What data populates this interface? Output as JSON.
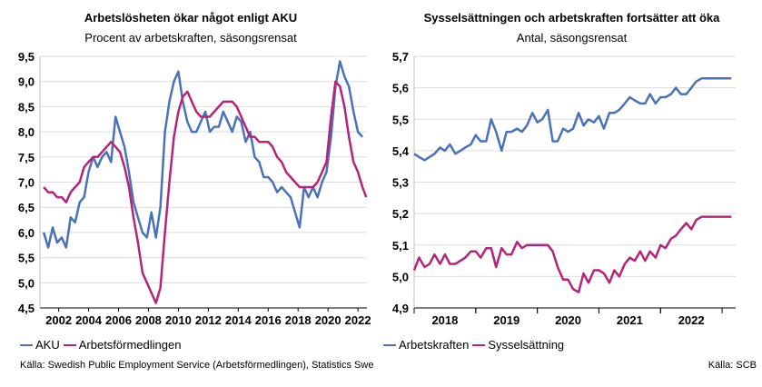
{
  "colors": {
    "blue": "#4a72b8",
    "magenta": "#b5247a",
    "axis": "#000000",
    "grid": "#dcdcdc"
  },
  "left": {
    "title": "Arbetslösheten ökar något enligt AKU",
    "subtitle": "Procent av arbetskraften, säsongsrensat",
    "legend": [
      "AKU",
      "Arbetsförmedlingen"
    ],
    "source": "Källa: Swedish Public Employment Service (Arbetsförmedlingen), Statistics Swe"
  },
  "right": {
    "title": "Sysselsättningen och arbetskraften fortsätter att öka",
    "subtitle": "Antal, säsongsrensat",
    "legend": [
      "Arbetskraften",
      "Sysselsättning"
    ],
    "source": "Källa: SCB"
  },
  "chart_data": [
    {
      "type": "line",
      "title": "Arbetslösheten ökar något enligt AKU",
      "subtitle": "Procent av arbetskraften, säsongsrensat",
      "ylim": [
        4.5,
        9.5
      ],
      "xlim": [
        2000.75,
        2022.6
      ],
      "y_ticks": [
        "4,5",
        "5,0",
        "5,5",
        "6,0",
        "6,5",
        "7,0",
        "7,5",
        "8,0",
        "8,5",
        "9,0",
        "9,5"
      ],
      "x_ticks": [
        "2002",
        "2004",
        "2006",
        "2008",
        "2010",
        "2012",
        "2014",
        "2016",
        "2018",
        "2020",
        "2022"
      ],
      "grid": true,
      "legend": "bottom-left",
      "series": [
        {
          "name": "AKU",
          "color": "#4a72b8",
          "x": [
            2001.0,
            2001.3,
            2001.6,
            2001.9,
            2002.2,
            2002.5,
            2002.8,
            2003.1,
            2003.4,
            2003.7,
            2004.0,
            2004.3,
            2004.6,
            2004.9,
            2005.2,
            2005.5,
            2005.8,
            2006.1,
            2006.4,
            2006.7,
            2007.0,
            2007.3,
            2007.6,
            2007.9,
            2008.2,
            2008.5,
            2008.8,
            2009.1,
            2009.4,
            2009.7,
            2010.0,
            2010.3,
            2010.6,
            2010.9,
            2011.2,
            2011.5,
            2011.8,
            2012.1,
            2012.4,
            2012.7,
            2013.0,
            2013.3,
            2013.6,
            2013.9,
            2014.2,
            2014.5,
            2014.8,
            2015.1,
            2015.4,
            2015.7,
            2016.0,
            2016.3,
            2016.6,
            2016.9,
            2017.2,
            2017.5,
            2017.8,
            2018.1,
            2018.4,
            2018.7,
            2019.0,
            2019.3,
            2019.6,
            2019.9,
            2020.2,
            2020.5,
            2020.8,
            2021.1,
            2021.4,
            2021.7,
            2022.0,
            2022.3
          ],
          "y": [
            6.0,
            5.7,
            6.1,
            5.8,
            5.9,
            5.7,
            6.3,
            6.2,
            6.6,
            6.7,
            7.2,
            7.5,
            7.3,
            7.5,
            7.6,
            7.4,
            8.3,
            8.0,
            7.7,
            7.2,
            6.6,
            6.3,
            6.0,
            5.9,
            6.4,
            5.9,
            6.5,
            8.0,
            8.6,
            9.0,
            9.2,
            8.6,
            8.2,
            8.0,
            8.0,
            8.2,
            8.4,
            8.0,
            8.1,
            8.1,
            8.4,
            8.2,
            8.0,
            8.3,
            8.2,
            7.8,
            8.0,
            7.5,
            7.4,
            7.1,
            7.1,
            7.0,
            6.8,
            6.9,
            6.8,
            6.7,
            6.4,
            6.1,
            6.9,
            6.7,
            6.9,
            6.7,
            7.0,
            7.2,
            7.9,
            8.9,
            9.4,
            9.1,
            8.9,
            8.4,
            8.0,
            7.9
          ]
        },
        {
          "name": "Arbetsförmedlingen",
          "color": "#b5247a",
          "x": [
            2001.0,
            2001.3,
            2001.6,
            2001.9,
            2002.2,
            2002.5,
            2002.8,
            2003.1,
            2003.4,
            2003.7,
            2004.0,
            2004.3,
            2004.6,
            2004.9,
            2005.2,
            2005.5,
            2005.8,
            2006.1,
            2006.4,
            2006.7,
            2007.0,
            2007.3,
            2007.6,
            2007.9,
            2008.2,
            2008.5,
            2008.8,
            2009.1,
            2009.4,
            2009.7,
            2010.0,
            2010.3,
            2010.6,
            2010.9,
            2011.2,
            2011.5,
            2011.8,
            2012.1,
            2012.4,
            2012.7,
            2013.0,
            2013.3,
            2013.6,
            2013.9,
            2014.2,
            2014.5,
            2014.8,
            2015.1,
            2015.4,
            2015.7,
            2016.0,
            2016.3,
            2016.6,
            2016.9,
            2017.2,
            2017.5,
            2017.8,
            2018.1,
            2018.4,
            2018.7,
            2019.0,
            2019.3,
            2019.6,
            2019.9,
            2020.2,
            2020.5,
            2020.8,
            2021.1,
            2021.4,
            2021.7,
            2022.0,
            2022.3,
            2022.55
          ],
          "y": [
            6.9,
            6.8,
            6.8,
            6.7,
            6.7,
            6.6,
            6.8,
            6.9,
            7.0,
            7.3,
            7.4,
            7.5,
            7.5,
            7.6,
            7.7,
            7.8,
            7.7,
            7.6,
            7.3,
            6.9,
            6.3,
            5.8,
            5.2,
            5.0,
            4.8,
            4.6,
            4.9,
            6.0,
            7.0,
            7.9,
            8.4,
            8.7,
            8.8,
            8.6,
            8.4,
            8.3,
            8.3,
            8.3,
            8.4,
            8.5,
            8.6,
            8.6,
            8.6,
            8.5,
            8.3,
            8.1,
            7.9,
            7.9,
            7.8,
            7.8,
            7.8,
            7.7,
            7.5,
            7.4,
            7.2,
            7.1,
            7.0,
            6.9,
            6.9,
            6.9,
            6.9,
            7.0,
            7.2,
            7.4,
            8.3,
            9.0,
            8.9,
            8.5,
            7.9,
            7.4,
            7.2,
            6.9,
            6.7
          ]
        }
      ]
    },
    {
      "type": "line",
      "title": "Sysselsättningen och arbetskraften fortsätter att öka",
      "subtitle": "Antal, säsongsrensat",
      "ylim": [
        4.9,
        5.7
      ],
      "xlim": [
        2017.5,
        2022.72
      ],
      "y_ticks": [
        "4,9",
        "5,0",
        "5,1",
        "5,2",
        "5,3",
        "5,4",
        "5,5",
        "5,6",
        "5,7"
      ],
      "x_ticks": [
        "2018",
        "2019",
        "2020",
        "2021",
        "2022"
      ],
      "grid": true,
      "legend": "bottom-left",
      "series": [
        {
          "name": "Arbetskraften",
          "color": "#4a72b8",
          "x": [
            2017.5,
            2017.58,
            2017.67,
            2017.75,
            2017.83,
            2017.92,
            2018.0,
            2018.08,
            2018.17,
            2018.25,
            2018.33,
            2018.42,
            2018.5,
            2018.58,
            2018.67,
            2018.75,
            2018.83,
            2018.92,
            2019.0,
            2019.08,
            2019.17,
            2019.25,
            2019.33,
            2019.42,
            2019.5,
            2019.58,
            2019.67,
            2019.75,
            2019.83,
            2019.92,
            2020.0,
            2020.08,
            2020.17,
            2020.25,
            2020.33,
            2020.42,
            2020.5,
            2020.58,
            2020.67,
            2020.75,
            2020.83,
            2020.92,
            2021.0,
            2021.08,
            2021.17,
            2021.25,
            2021.33,
            2021.42,
            2021.5,
            2021.58,
            2021.67,
            2021.75,
            2021.83,
            2021.92,
            2022.0,
            2022.08,
            2022.17,
            2022.25,
            2022.33,
            2022.42,
            2022.5,
            2022.58,
            2022.65
          ],
          "y": [
            5.39,
            5.38,
            5.37,
            5.38,
            5.39,
            5.41,
            5.4,
            5.42,
            5.39,
            5.4,
            5.41,
            5.42,
            5.45,
            5.43,
            5.43,
            5.5,
            5.46,
            5.4,
            5.46,
            5.46,
            5.47,
            5.46,
            5.48,
            5.52,
            5.49,
            5.5,
            5.53,
            5.43,
            5.43,
            5.47,
            5.46,
            5.47,
            5.52,
            5.48,
            5.5,
            5.49,
            5.51,
            5.47,
            5.52,
            5.52,
            5.53,
            5.55,
            5.57,
            5.56,
            5.55,
            5.55,
            5.58,
            5.55,
            5.57,
            5.57,
            5.58,
            5.6,
            5.58,
            5.58,
            5.6,
            5.62,
            5.63,
            5.63,
            5.63,
            5.63,
            5.63,
            5.63,
            5.63
          ]
        },
        {
          "name": "Sysselsättning",
          "color": "#b5247a",
          "x": [
            2017.5,
            2017.58,
            2017.67,
            2017.75,
            2017.83,
            2017.92,
            2018.0,
            2018.08,
            2018.17,
            2018.25,
            2018.33,
            2018.42,
            2018.5,
            2018.58,
            2018.67,
            2018.75,
            2018.83,
            2018.92,
            2019.0,
            2019.08,
            2019.17,
            2019.25,
            2019.33,
            2019.42,
            2019.5,
            2019.58,
            2019.67,
            2019.75,
            2019.83,
            2019.92,
            2020.0,
            2020.08,
            2020.17,
            2020.25,
            2020.33,
            2020.42,
            2020.5,
            2020.58,
            2020.67,
            2020.75,
            2020.83,
            2020.92,
            2021.0,
            2021.08,
            2021.17,
            2021.25,
            2021.33,
            2021.42,
            2021.5,
            2021.58,
            2021.67,
            2021.75,
            2021.83,
            2021.92,
            2022.0,
            2022.08,
            2022.17,
            2022.25,
            2022.33,
            2022.42,
            2022.5,
            2022.58,
            2022.65
          ],
          "y": [
            5.02,
            5.06,
            5.03,
            5.04,
            5.07,
            5.04,
            5.07,
            5.04,
            5.04,
            5.05,
            5.06,
            5.08,
            5.08,
            5.06,
            5.09,
            5.09,
            5.03,
            5.09,
            5.07,
            5.07,
            5.11,
            5.09,
            5.1,
            5.1,
            5.1,
            5.1,
            5.1,
            5.08,
            5.03,
            4.99,
            4.99,
            4.96,
            4.95,
            5.01,
            4.98,
            5.02,
            5.02,
            5.01,
            4.98,
            5.02,
            5.0,
            5.04,
            5.06,
            5.05,
            5.08,
            5.05,
            5.08,
            5.06,
            5.1,
            5.09,
            5.12,
            5.13,
            5.15,
            5.17,
            5.15,
            5.18,
            5.19,
            5.19,
            5.19,
            5.19,
            5.19,
            5.19,
            5.19
          ]
        }
      ]
    }
  ]
}
